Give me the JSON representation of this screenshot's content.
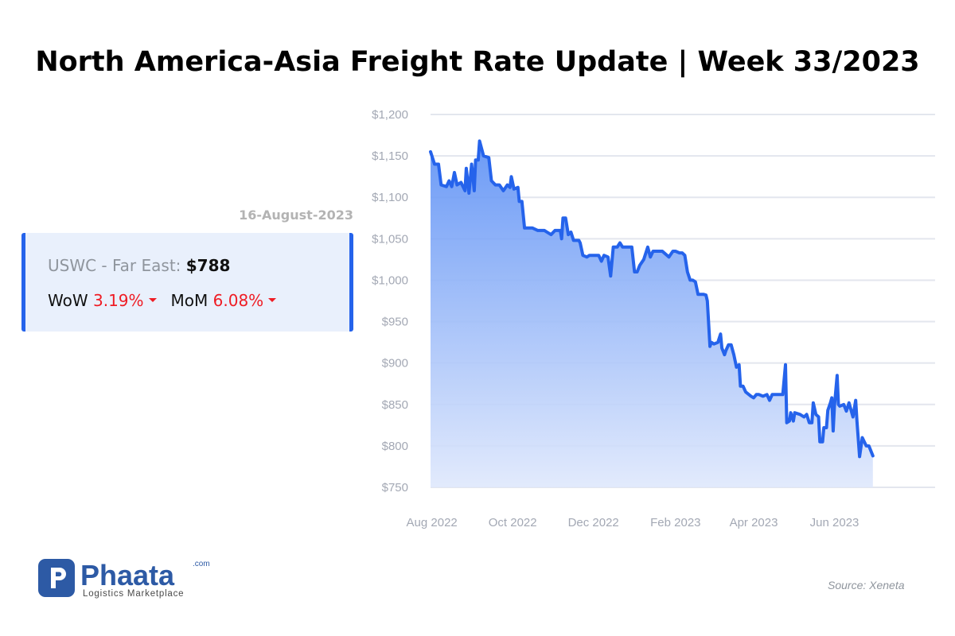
{
  "title": "North America-Asia Freight Rate Update | Week 33/2023",
  "info": {
    "date": "16-August-2023",
    "route_label": "USWC - Far East:",
    "price": "$788",
    "wow_label": "WoW",
    "wow_value": "3.19%",
    "mom_label": "MoM",
    "mom_value": "6.08%",
    "trend_direction": "down",
    "accent_color": "#2563eb",
    "negative_color": "#ef1c24"
  },
  "logo": {
    "icon": "p-letter-logo-icon",
    "name": "Phaata",
    "domain": ".com",
    "tagline": "Logistics Marketplace",
    "color": "#2d5aa5"
  },
  "source": "Source: Xeneta",
  "chart_data": {
    "type": "area",
    "title": "",
    "xlabel": "",
    "ylabel": "",
    "series_color": "#2563eb",
    "grid": true,
    "ylim": [
      750,
      1200
    ],
    "yticks": [
      750,
      800,
      850,
      900,
      950,
      1000,
      1050,
      1100,
      1150,
      1200
    ],
    "ytick_labels": [
      "$750",
      "$800",
      "$850",
      "$900",
      "$950",
      "$1,000",
      "$1,050",
      "$1,100",
      "$1,150",
      "$1,200"
    ],
    "xlim": [
      "2022-07-31",
      "2023-08-16"
    ],
    "xticks": [
      "2022-08-01",
      "2022-10-01",
      "2022-12-01",
      "2023-02-01",
      "2023-04-01",
      "2023-06-01"
    ],
    "xtick_labels": [
      "Aug 2022",
      "Oct 2022",
      "Dec 2022",
      "Feb 2023",
      "Apr 2023",
      "Jun 2023"
    ],
    "series": [
      {
        "values": [
          [
            "2022-07-31",
            1155
          ],
          [
            "2022-08-03",
            1140
          ],
          [
            "2022-08-06",
            1140
          ],
          [
            "2022-08-08",
            1115
          ],
          [
            "2022-08-12",
            1113
          ],
          [
            "2022-08-14",
            1120
          ],
          [
            "2022-08-16",
            1113
          ],
          [
            "2022-08-18",
            1130
          ],
          [
            "2022-08-20",
            1115
          ],
          [
            "2022-08-23",
            1118
          ],
          [
            "2022-08-26",
            1108
          ],
          [
            "2022-08-27",
            1135
          ],
          [
            "2022-08-29",
            1105
          ],
          [
            "2022-08-31",
            1140
          ],
          [
            "2022-09-02",
            1108
          ],
          [
            "2022-09-03",
            1145
          ],
          [
            "2022-09-05",
            1145
          ],
          [
            "2022-09-06",
            1168
          ],
          [
            "2022-09-09",
            1150
          ],
          [
            "2022-09-13",
            1148
          ],
          [
            "2022-09-15",
            1120
          ],
          [
            "2022-09-18",
            1115
          ],
          [
            "2022-09-21",
            1115
          ],
          [
            "2022-09-24",
            1108
          ],
          [
            "2022-09-27",
            1115
          ],
          [
            "2022-09-29",
            1112
          ],
          [
            "2022-09-30",
            1125
          ],
          [
            "2022-10-02",
            1110
          ],
          [
            "2022-10-05",
            1112
          ],
          [
            "2022-10-06",
            1095
          ],
          [
            "2022-10-08",
            1095
          ],
          [
            "2022-10-10",
            1063
          ],
          [
            "2022-10-16",
            1063
          ],
          [
            "2022-10-20",
            1060
          ],
          [
            "2022-10-25",
            1060
          ],
          [
            "2022-10-27",
            1058
          ],
          [
            "2022-10-30",
            1055
          ],
          [
            "2022-11-02",
            1060
          ],
          [
            "2022-11-06",
            1060
          ],
          [
            "2022-11-07",
            1050
          ],
          [
            "2022-11-08",
            1075
          ],
          [
            "2022-11-10",
            1075
          ],
          [
            "2022-11-12",
            1055
          ],
          [
            "2022-11-14",
            1058
          ],
          [
            "2022-11-16",
            1048
          ],
          [
            "2022-11-20",
            1048
          ],
          [
            "2022-11-21",
            1045
          ],
          [
            "2022-11-23",
            1030
          ],
          [
            "2022-11-26",
            1028
          ],
          [
            "2022-11-28",
            1030
          ],
          [
            "2022-12-05",
            1030
          ],
          [
            "2022-12-07",
            1023
          ],
          [
            "2022-12-09",
            1030
          ],
          [
            "2022-12-12",
            1028
          ],
          [
            "2022-12-14",
            1005
          ],
          [
            "2022-12-16",
            1040
          ],
          [
            "2022-12-19",
            1040
          ],
          [
            "2022-12-21",
            1045
          ],
          [
            "2022-12-23",
            1040
          ],
          [
            "2022-12-30",
            1040
          ],
          [
            "2023-01-01",
            1010
          ],
          [
            "2023-01-03",
            1010
          ],
          [
            "2023-01-05",
            1018
          ],
          [
            "2023-01-08",
            1025
          ],
          [
            "2023-01-11",
            1040
          ],
          [
            "2023-01-13",
            1028
          ],
          [
            "2023-01-15",
            1035
          ],
          [
            "2023-01-17",
            1035
          ],
          [
            "2023-01-22",
            1035
          ],
          [
            "2023-01-27",
            1028
          ],
          [
            "2023-01-30",
            1035
          ],
          [
            "2023-02-01",
            1035
          ],
          [
            "2023-02-04",
            1033
          ],
          [
            "2023-02-06",
            1033
          ],
          [
            "2023-02-08",
            1030
          ],
          [
            "2023-02-10",
            1010
          ],
          [
            "2023-02-12",
            1000
          ],
          [
            "2023-02-14",
            1000
          ],
          [
            "2023-02-16",
            998
          ],
          [
            "2023-02-18",
            983
          ],
          [
            "2023-02-22",
            983
          ],
          [
            "2023-02-24",
            982
          ],
          [
            "2023-02-25",
            975
          ],
          [
            "2023-02-27",
            920
          ],
          [
            "2023-02-28",
            925
          ],
          [
            "2023-03-02",
            923
          ],
          [
            "2023-03-05",
            925
          ],
          [
            "2023-03-07",
            935
          ],
          [
            "2023-03-08",
            918
          ],
          [
            "2023-03-10",
            910
          ],
          [
            "2023-03-11",
            915
          ],
          [
            "2023-03-13",
            922
          ],
          [
            "2023-03-15",
            922
          ],
          [
            "2023-03-17",
            910
          ],
          [
            "2023-03-19",
            895
          ],
          [
            "2023-03-21",
            898
          ],
          [
            "2023-03-22",
            872
          ],
          [
            "2023-03-24",
            872
          ],
          [
            "2023-03-26",
            865
          ],
          [
            "2023-03-30",
            860
          ],
          [
            "2023-04-01",
            858
          ],
          [
            "2023-04-03",
            862
          ],
          [
            "2023-04-05",
            862
          ],
          [
            "2023-04-08",
            860
          ],
          [
            "2023-04-11",
            862
          ],
          [
            "2023-04-13",
            855
          ],
          [
            "2023-04-15",
            862
          ],
          [
            "2023-04-20",
            862
          ],
          [
            "2023-04-23",
            862
          ],
          [
            "2023-04-25",
            898
          ],
          [
            "2023-04-26",
            828
          ],
          [
            "2023-04-28",
            830
          ],
          [
            "2023-04-29",
            840
          ],
          [
            "2023-05-01",
            830
          ],
          [
            "2023-05-02",
            840
          ],
          [
            "2023-05-06",
            838
          ],
          [
            "2023-05-09",
            835
          ],
          [
            "2023-05-11",
            838
          ],
          [
            "2023-05-13",
            828
          ],
          [
            "2023-05-15",
            828
          ],
          [
            "2023-05-16",
            852
          ],
          [
            "2023-05-18",
            838
          ],
          [
            "2023-05-20",
            835
          ],
          [
            "2023-05-21",
            805
          ],
          [
            "2023-05-23",
            805
          ],
          [
            "2023-05-24",
            822
          ],
          [
            "2023-05-26",
            822
          ],
          [
            "2023-05-27",
            843
          ],
          [
            "2023-05-29",
            852
          ],
          [
            "2023-05-30",
            858
          ],
          [
            "2023-05-31",
            818
          ],
          [
            "2023-06-01",
            848
          ],
          [
            "2023-06-03",
            885
          ],
          [
            "2023-06-04",
            850
          ],
          [
            "2023-06-05",
            848
          ],
          [
            "2023-06-08",
            850
          ],
          [
            "2023-06-10",
            842
          ],
          [
            "2023-06-12",
            852
          ],
          [
            "2023-06-15",
            835
          ],
          [
            "2023-06-17",
            855
          ],
          [
            "2023-06-18",
            830
          ],
          [
            "2023-06-20",
            787
          ],
          [
            "2023-06-22",
            810
          ],
          [
            "2023-06-25",
            800
          ],
          [
            "2023-06-27",
            800
          ],
          [
            "2023-06-30",
            788
          ]
        ]
      }
    ]
  }
}
